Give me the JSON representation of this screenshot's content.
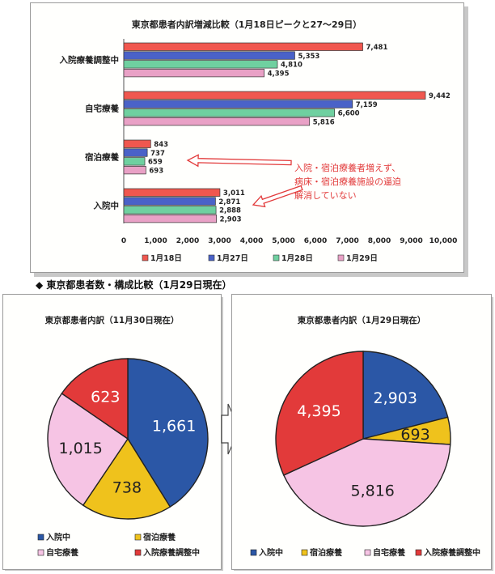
{
  "colors": {
    "hospitalized": "#2b57a6",
    "lodging": "#efc21c",
    "home": "#f6c4e4",
    "adjusting": "#e23a3a",
    "bar_hospitalized": "#f0574f",
    "bar_lodging": "#4a62c8",
    "bar_home": "#6fd0a0",
    "bar_adjusting": "#e9a1c6",
    "annotation": "#e23a3a"
  },
  "section_heading": "◆ 東京都患者数・構成比較（1月29日現在）",
  "chart_data": [
    {
      "type": "bar",
      "orientation": "horizontal",
      "title": "東京都患者内訳増減比較（1月18日ピークと27～29日）",
      "categories": [
        "入院療養調整中",
        "自宅療養",
        "宿泊療養",
        "入院中"
      ],
      "series": [
        {
          "name": "1月18日",
          "values": [
            7481,
            9442,
            843,
            3011
          ]
        },
        {
          "name": "1月27日",
          "values": [
            5353,
            7159,
            737,
            2871
          ]
        },
        {
          "name": "1月28日",
          "values": [
            4810,
            6600,
            659,
            2888
          ]
        },
        {
          "name": "1月29日",
          "values": [
            4395,
            5816,
            693,
            2903
          ]
        }
      ],
      "value_labels": [
        [
          "7,481",
          "5,353",
          "4,810",
          "4,395"
        ],
        [
          "9,442",
          "7,159",
          "6,600",
          "5,816"
        ],
        [
          "843",
          "737",
          "659",
          "693"
        ],
        [
          "3,011",
          "2,871",
          "2,888",
          "2,903"
        ]
      ],
      "xlim": [
        0,
        10000
      ],
      "xticks": [
        0,
        1000,
        2000,
        3000,
        4000,
        5000,
        6000,
        7000,
        8000,
        9000,
        10000
      ],
      "xtick_labels": [
        "0",
        "1,000",
        "2,000",
        "3,000",
        "4,000",
        "5,000",
        "6,000",
        "7,000",
        "8,000",
        "9,000",
        "10,000"
      ],
      "legend_position": "bottom",
      "annotation_lines": [
        "入院・宿泊療養者増えず、",
        "病床・宿泊療養施設の逼迫",
        "解消していない"
      ]
    },
    {
      "type": "pie",
      "title": "東京都患者内訳（11月30日現在）",
      "slices": [
        {
          "name": "入院中",
          "value": 1661,
          "label": "1,661",
          "key": "hospitalized"
        },
        {
          "name": "宿泊療養",
          "value": 738,
          "label": "738",
          "key": "lodging"
        },
        {
          "name": "自宅療養",
          "value": 1015,
          "label": "1,015",
          "key": "home"
        },
        {
          "name": "入院療養調整中",
          "value": 623,
          "label": "623",
          "key": "adjusting"
        }
      ],
      "legend_position": "bottom"
    },
    {
      "type": "pie",
      "title": "東京都患者内訳（1月29日現在）",
      "slices": [
        {
          "name": "入院中",
          "value": 2903,
          "label": "2,903",
          "key": "hospitalized"
        },
        {
          "name": "宿泊療養",
          "value": 693,
          "label": "693",
          "key": "lodging"
        },
        {
          "name": "自宅療養",
          "value": 5816,
          "label": "5,816",
          "key": "home"
        },
        {
          "name": "入院療養調整中",
          "value": 4395,
          "label": "4,395",
          "key": "adjusting"
        }
      ],
      "legend_position": "bottom"
    }
  ]
}
